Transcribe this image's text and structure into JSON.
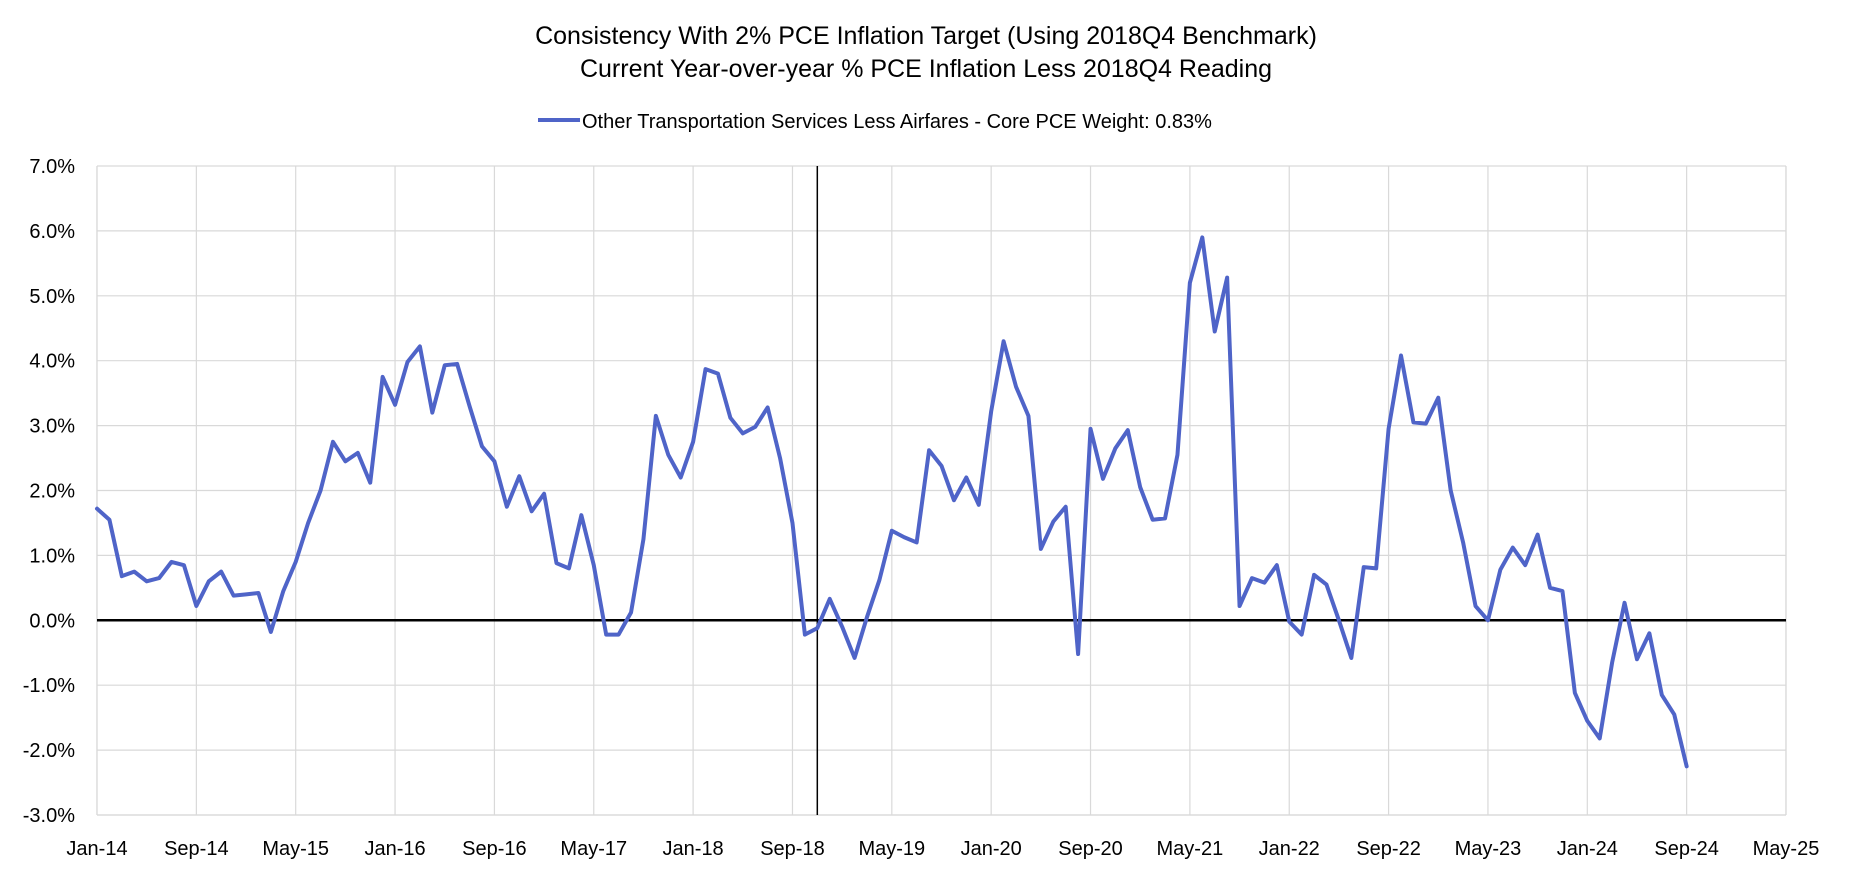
{
  "chart_data": {
    "type": "line",
    "title_line1": "Consistency With 2% PCE Inflation Target (Using 2018Q4 Benchmark)",
    "title_line2": "Current Year-over-year % PCE Inflation Less 2018Q4 Reading",
    "xlabel": "",
    "ylabel": "",
    "ylim": [
      -3.0,
      7.0
    ],
    "y_ticks": [
      "-3.0%",
      "-2.0%",
      "-1.0%",
      "0.0%",
      "1.0%",
      "2.0%",
      "3.0%",
      "4.0%",
      "5.0%",
      "6.0%",
      "7.0%"
    ],
    "x_ticks": [
      "Jan-14",
      "Sep-14",
      "May-15",
      "Jan-16",
      "Sep-16",
      "May-17",
      "Jan-18",
      "Sep-18",
      "May-19",
      "Jan-20",
      "Sep-20",
      "May-21",
      "Jan-22",
      "Sep-22",
      "May-23",
      "Jan-24",
      "Sep-24",
      "May-25"
    ],
    "x_start": "Jan-14",
    "x_months_total": 136,
    "x_tick_interval_months": 8,
    "vertical_marker_month_index": 58,
    "series": [
      {
        "name": "Other Transportation Services Less Airfares - Core PCE Weight: 0.83%",
        "color": "#4F64C8",
        "values": [
          1.72,
          1.55,
          0.68,
          0.75,
          0.6,
          0.65,
          0.9,
          0.85,
          0.22,
          0.6,
          0.75,
          0.38,
          0.4,
          0.42,
          -0.18,
          0.45,
          0.9,
          1.5,
          2.0,
          2.75,
          2.45,
          2.58,
          2.12,
          3.75,
          3.32,
          3.98,
          4.22,
          3.2,
          3.93,
          3.95,
          3.3,
          2.68,
          2.45,
          1.75,
          2.22,
          1.68,
          1.95,
          0.88,
          0.8,
          1.62,
          0.85,
          -0.22,
          -0.22,
          0.12,
          1.25,
          3.15,
          2.55,
          2.2,
          2.75,
          3.87,
          3.8,
          3.12,
          2.88,
          2.98,
          3.28,
          2.5,
          1.5,
          -0.22,
          -0.12,
          0.33,
          -0.1,
          -0.58,
          0.05,
          0.62,
          1.38,
          1.28,
          1.2,
          2.62,
          2.38,
          1.85,
          2.2,
          1.78,
          3.22,
          4.3,
          3.6,
          3.15,
          1.1,
          1.52,
          1.75,
          -0.52,
          2.95,
          2.18,
          2.65,
          2.93,
          2.05,
          1.55,
          1.57,
          2.55,
          5.2,
          5.9,
          4.45,
          5.28,
          0.22,
          0.65,
          0.58,
          0.85,
          -0.02,
          -0.22,
          0.7,
          0.55,
          0.0,
          -0.58,
          0.82,
          0.8,
          2.95,
          4.08,
          3.05,
          3.03,
          3.43,
          2.0,
          1.2,
          0.22,
          0.0,
          0.78,
          1.12,
          0.85,
          1.32,
          0.5,
          0.45,
          -1.12,
          -1.55,
          -1.82,
          -0.65,
          0.27,
          -0.6,
          -0.2,
          -1.15,
          -1.45,
          -2.25
        ]
      }
    ]
  }
}
